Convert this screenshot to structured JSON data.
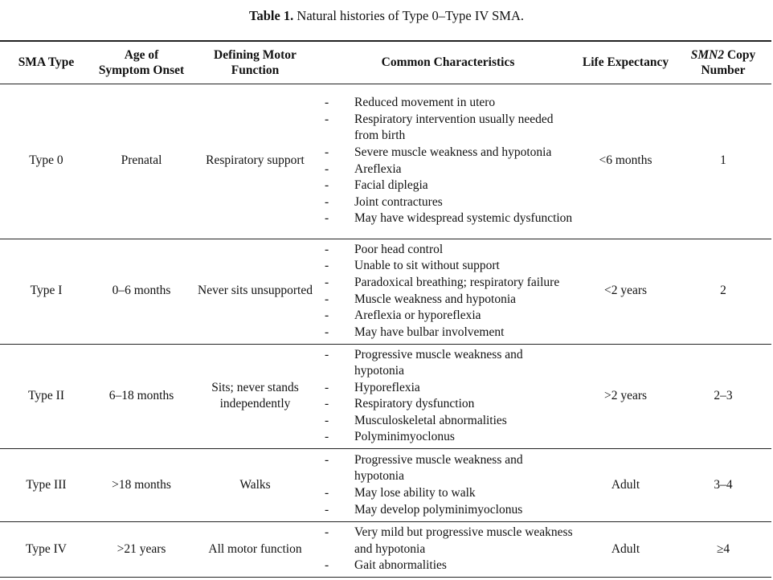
{
  "caption": {
    "label": "Table 1.",
    "text": " Natural histories of Type 0–Type IV SMA."
  },
  "table": {
    "headers": [
      [
        "SMA Type"
      ],
      [
        "Age of Symptom Onset"
      ],
      [
        "Defining Motor Function"
      ],
      [
        "Common Characteristics"
      ],
      [
        "Life Expectancy"
      ],
      [
        "SMN2",
        " Copy Number"
      ]
    ],
    "rows": [
      {
        "type": "Type 0",
        "onset": "Prenatal",
        "motor": "Respiratory support",
        "characteristics": [
          "Reduced movement in utero",
          "Respiratory intervention usually needed from birth",
          "Severe muscle weakness and hypotonia",
          "Areflexia",
          "Facial diplegia",
          "Joint contractures",
          "May have widespread systemic dysfunction"
        ],
        "life": "<6 months",
        "copies": "1"
      },
      {
        "type": "Type I",
        "onset": "0–6 months",
        "motor": "Never sits unsupported",
        "characteristics": [
          "Poor head control",
          "Unable to sit without support",
          "Paradoxical breathing; respiratory failure",
          "Muscle weakness and hypotonia",
          "Areflexia or hyporeflexia",
          "May have bulbar involvement"
        ],
        "life": "<2 years",
        "copies": "2"
      },
      {
        "type": "Type II",
        "onset": "6–18 months",
        "motor": "Sits; never stands independently",
        "characteristics": [
          "Progressive muscle weakness and hypotonia",
          "Hyporeflexia",
          "Respiratory dysfunction",
          "Musculoskeletal abnormalities",
          "Polyminimyoclonus"
        ],
        "life": ">2 years",
        "copies": "2–3"
      },
      {
        "type": "Type III",
        "onset": ">18 months",
        "motor": "Walks",
        "characteristics": [
          "Progressive muscle weakness and hypotonia",
          "May lose ability to walk",
          "May develop polyminimyoclonus"
        ],
        "life": "Adult",
        "copies": "3–4"
      },
      {
        "type": "Type IV",
        "onset": ">21 years",
        "motor": "All motor function",
        "characteristics": [
          "Very mild but progressive muscle weakness and hypotonia",
          "Gait abnormalities"
        ],
        "life": "Adult",
        "copies": "≥4"
      }
    ]
  }
}
